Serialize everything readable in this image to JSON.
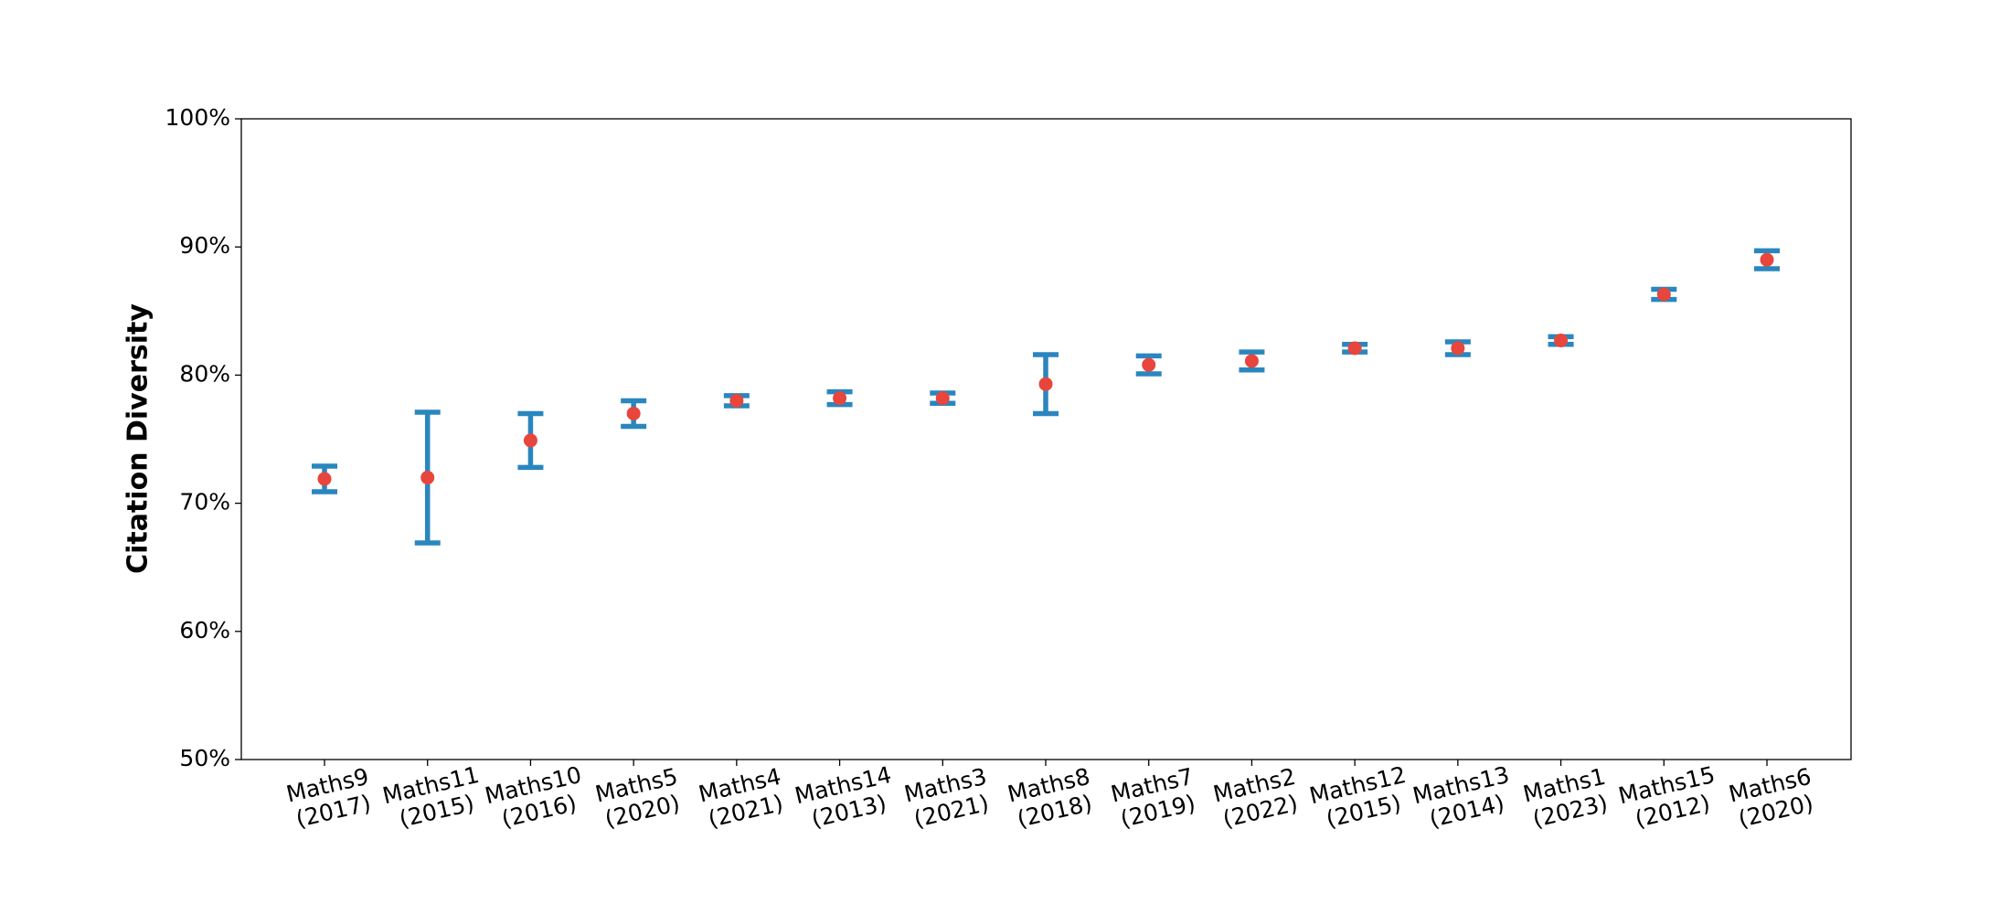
{
  "chart_data": {
    "type": "errorbar",
    "ylabel": "Citation Diversity",
    "categories": [
      "Maths9\n(2017)",
      "Maths11\n(2015)",
      "Maths10\n(2016)",
      "Maths5\n(2020)",
      "Maths4\n(2021)",
      "Maths14\n(2013)",
      "Maths3\n(2021)",
      "Maths8\n(2018)",
      "Maths7\n(2019)",
      "Maths2\n(2022)",
      "Maths12\n(2015)",
      "Maths13\n(2014)",
      "Maths1\n(2023)",
      "Maths15\n(2012)",
      "Maths6\n(2020)"
    ],
    "values": [
      71.9,
      72.0,
      74.9,
      77.0,
      78.0,
      78.2,
      78.2,
      79.3,
      80.8,
      81.1,
      82.1,
      82.1,
      82.7,
      86.3,
      89.0
    ],
    "errors": [
      1.0,
      5.1,
      2.1,
      1.0,
      0.4,
      0.5,
      0.4,
      2.3,
      0.7,
      0.7,
      0.3,
      0.5,
      0.3,
      0.4,
      0.7
    ],
    "color": "#e8453c",
    "error_color": "#2a86bf",
    "ylim": [
      50,
      100
    ],
    "yticks": [
      {
        "value": 50,
        "label": "50%"
      },
      {
        "value": 60,
        "label": "60%"
      },
      {
        "value": 70,
        "label": "70%"
      },
      {
        "value": 80,
        "label": "80%"
      },
      {
        "value": 90,
        "label": "90%"
      },
      {
        "value": 100,
        "label": "100%"
      }
    ],
    "grid": false
  }
}
